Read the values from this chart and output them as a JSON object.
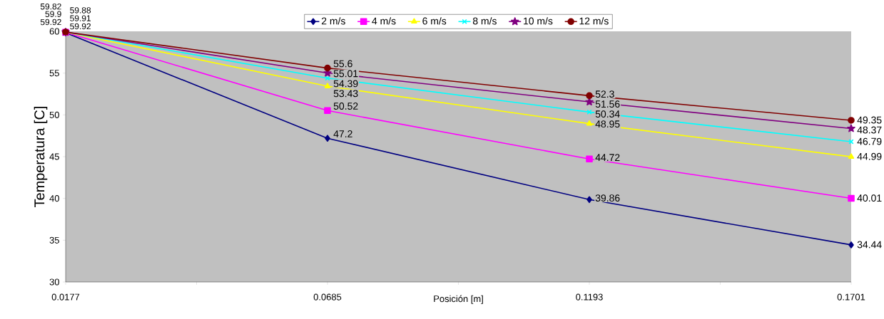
{
  "chart_data": {
    "type": "line",
    "xlabel": "Posición [m]",
    "ylabel": "Temperatura [C]",
    "x": [
      0.0177,
      0.0685,
      0.1193,
      0.1701
    ],
    "series": [
      {
        "name": "2  m/s",
        "color": "#000080",
        "marker": "diamond",
        "values": [
          59.82,
          47.2,
          39.86,
          34.44
        ]
      },
      {
        "name": "4 m/s",
        "color": "#ff00ff",
        "marker": "square",
        "values": [
          59.88,
          50.52,
          44.72,
          40.01
        ]
      },
      {
        "name": "6 m/s",
        "color": "#ffff00",
        "marker": "triangle",
        "values": [
          59.9,
          53.43,
          48.95,
          44.99
        ]
      },
      {
        "name": "8 m/s",
        "color": "#00ffff",
        "marker": "cross",
        "values": [
          59.91,
          54.39,
          50.34,
          46.79
        ]
      },
      {
        "name": "10 m/s",
        "color": "#800080",
        "marker": "star",
        "values": [
          59.92,
          55.01,
          51.56,
          48.37
        ]
      },
      {
        "name": "12 m/s",
        "color": "#800000",
        "marker": "circle",
        "values": [
          59.92,
          55.6,
          52.3,
          49.35
        ]
      }
    ],
    "xlim": [
      0.0177,
      0.1701
    ],
    "ylim": [
      30,
      60
    ],
    "xticks": [
      0.0177,
      {
        "value": 0.0431,
        "label": null
      },
      0.0685,
      {
        "value": 0.0939,
        "label": null
      },
      0.1193,
      {
        "value": 0.1447,
        "label": null
      },
      0.1701
    ],
    "yticks": [
      30,
      35,
      40,
      45,
      50,
      55,
      60
    ],
    "data_labels": true,
    "legend": "top",
    "grid": false
  }
}
